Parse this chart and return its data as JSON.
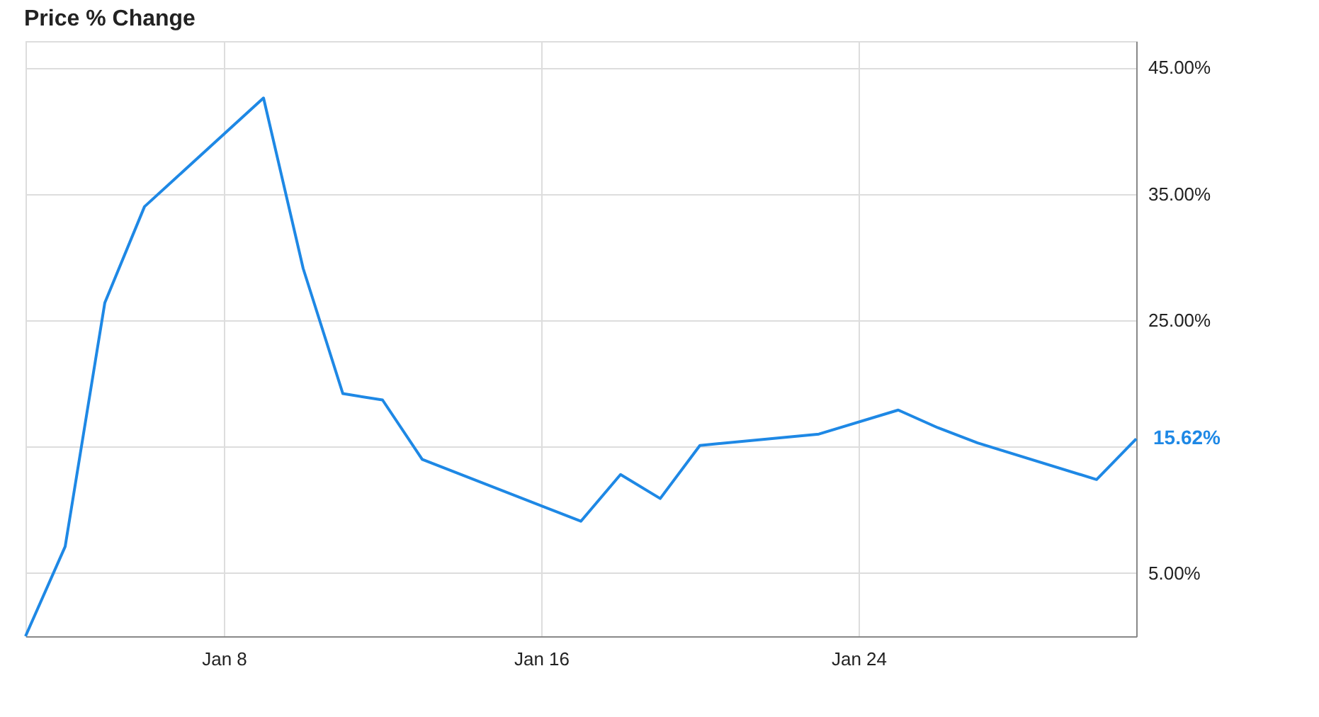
{
  "chart_data": {
    "type": "line",
    "title": "Price % Change",
    "x": [
      "--01-03",
      "--01-04",
      "--01-05",
      "--01-06",
      "--01-09",
      "--01-10",
      "--01-11",
      "--01-12",
      "--01-13",
      "--01-17",
      "--01-18",
      "--01-19",
      "--01-20",
      "--01-23",
      "--01-25",
      "--01-26",
      "--01-27",
      "--01-30",
      "--01-31"
    ],
    "series": [
      {
        "color": "#1e88e5",
        "values": [
          0,
          7.1,
          26.4,
          34.0,
          42.6,
          29.1,
          19.2,
          18.7,
          14.0,
          9.1,
          12.8,
          10.9,
          15.1,
          16.0,
          17.9,
          16.5,
          15.3,
          12.4,
          15.62
        ]
      }
    ],
    "xlim": [
      "--01-03",
      "--01-31"
    ],
    "xticks": [
      {
        "value": "--01-08",
        "label": "Jan 8"
      },
      {
        "value": "--01-16",
        "label": "Jan 16"
      },
      {
        "value": "--01-24",
        "label": "Jan 24"
      }
    ],
    "ylim": [
      0,
      47.1
    ],
    "yticks": [
      {
        "value": 5,
        "label": "5.00%"
      },
      {
        "value": 15,
        "label": null
      },
      {
        "value": 25,
        "label": "25.00%"
      },
      {
        "value": 35,
        "label": "35.00%"
      },
      {
        "value": 45,
        "label": "45.00%"
      }
    ],
    "annotations": [
      {
        "text": "15.62%",
        "x": "--01-31",
        "y": 15.62
      }
    ],
    "grid": true,
    "marker": "none",
    "line_style": "solid"
  }
}
